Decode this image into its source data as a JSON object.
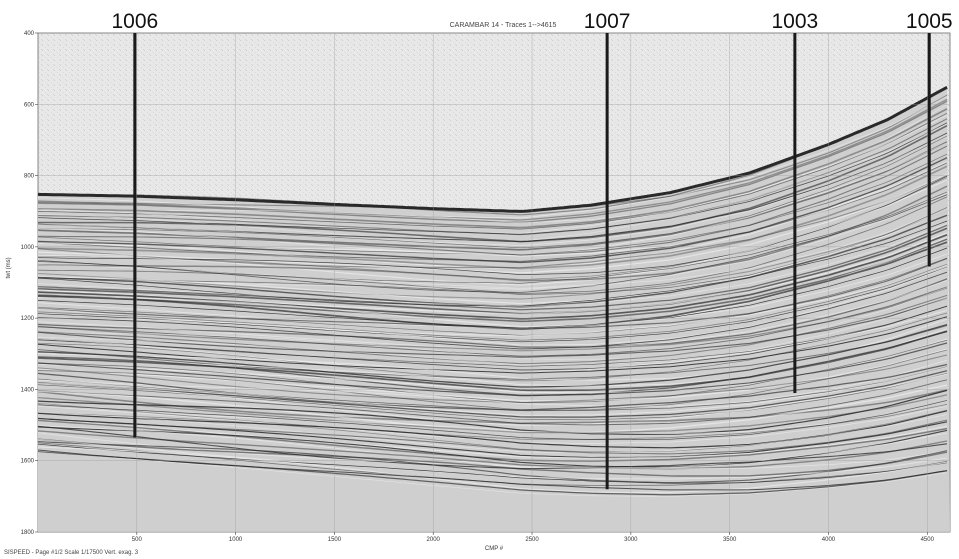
{
  "chart_data": {
    "type": "seismic-section",
    "title": "CARAMBAR 14 - Traces 1-->4615",
    "xlabel": "CMP #",
    "ylabel": "twt (ms)",
    "xlim": [
      0,
      4615
    ],
    "ylim": [
      400,
      1800
    ],
    "y_inverted": true,
    "x_ticks": [
      500,
      1000,
      1500,
      2000,
      2500,
      3000,
      3500,
      4000,
      4500
    ],
    "y_ticks": [
      400,
      600,
      800,
      1000,
      1200,
      1400,
      1600,
      1800
    ],
    "grid": true,
    "seafloor_twt_ms": [
      {
        "cmp": 0,
        "twt": 850
      },
      {
        "cmp": 500,
        "twt": 855
      },
      {
        "cmp": 1000,
        "twt": 865
      },
      {
        "cmp": 1500,
        "twt": 878
      },
      {
        "cmp": 2000,
        "twt": 890
      },
      {
        "cmp": 2450,
        "twt": 898
      },
      {
        "cmp": 2800,
        "twt": 880
      },
      {
        "cmp": 3200,
        "twt": 845
      },
      {
        "cmp": 3600,
        "twt": 790
      },
      {
        "cmp": 4000,
        "twt": 710
      },
      {
        "cmp": 4300,
        "twt": 640
      },
      {
        "cmp": 4615,
        "twt": 545
      }
    ],
    "wells": [
      {
        "label": "1006",
        "cmp": 490,
        "twt_bottom": 1535
      },
      {
        "label": "1007",
        "cmp": 2880,
        "twt_bottom": 1680
      },
      {
        "label": "1003",
        "cmp": 3830,
        "twt_bottom": 1410
      },
      {
        "label": "1005",
        "cmp": 4510,
        "twt_bottom": 1055
      }
    ],
    "footer": "SISPEED - Page #1/2   Scale 1/17500  Vert. exag. 3"
  },
  "colors": {
    "water": "#e8e8e8",
    "sediment_base": "#cfcfcf",
    "reflector_dark": "#2a2a2a",
    "reflector_light": "#f4f4f4",
    "well_line": "#1a1a1a",
    "grid": "#9a9a9a"
  }
}
